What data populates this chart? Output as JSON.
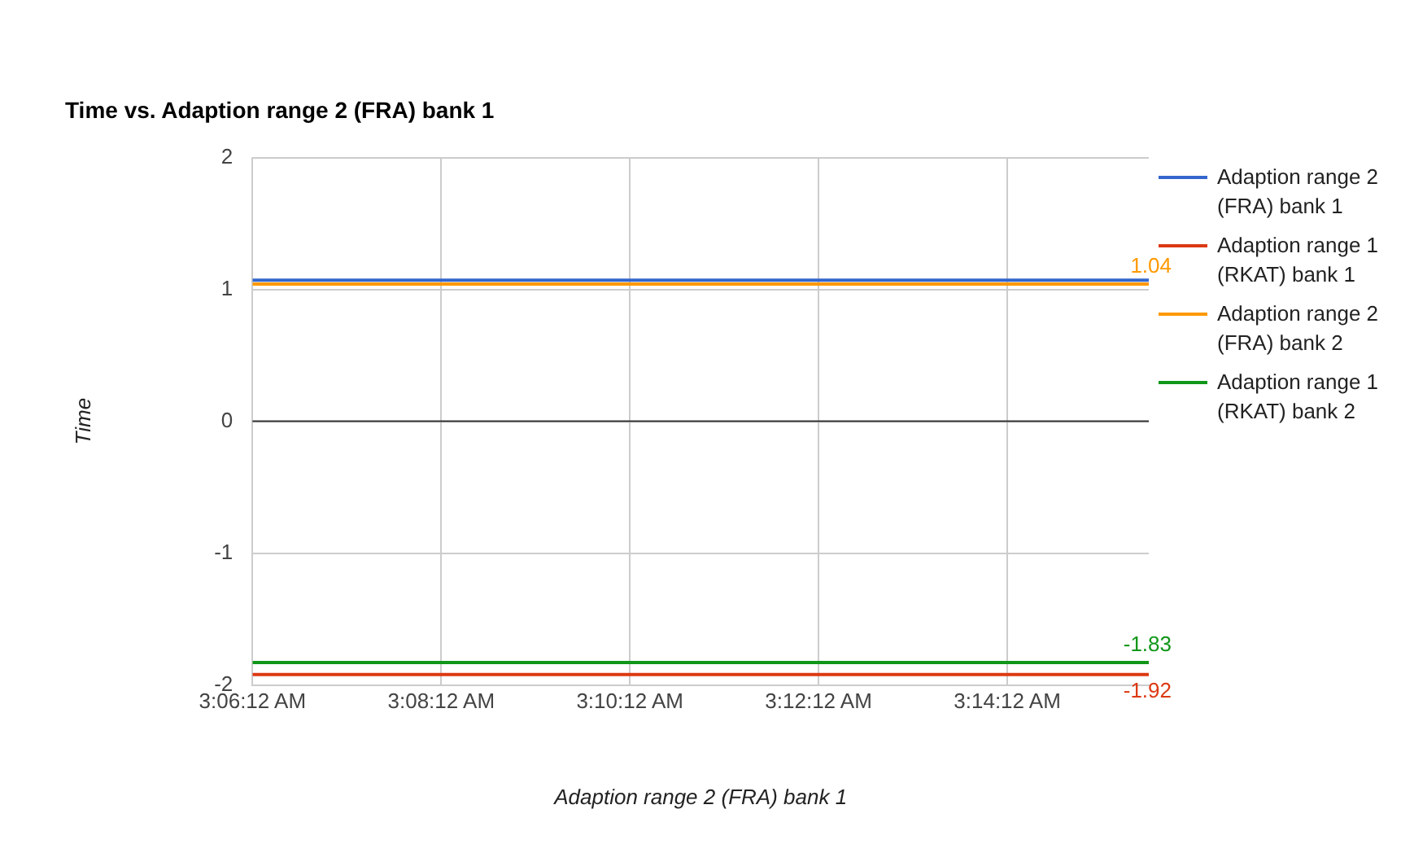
{
  "chart_data": {
    "type": "line",
    "title": "Time vs. Adaption range 2 (FRA) bank 1",
    "xlabel": "Adaption range 2 (FRA) bank 1",
    "ylabel": "Time",
    "x": [
      3.10333,
      3.26167
    ],
    "xlim": [
      3.10333,
      3.26167
    ],
    "xticks": [
      {
        "value": 3.10333,
        "label": "3:06:12 AM"
      },
      {
        "value": 3.13667,
        "label": "3:08:12 AM"
      },
      {
        "value": 3.17,
        "label": "3:10:12 AM"
      },
      {
        "value": 3.20333,
        "label": "3:12:12 AM"
      },
      {
        "value": 3.23667,
        "label": "3:14:12 AM"
      }
    ],
    "ylim": [
      -2,
      2
    ],
    "yticks": [
      -2,
      -1,
      0,
      1,
      2
    ],
    "series": [
      {
        "name": "Adaption range 2 (FRA) bank 1",
        "color": "#3366cc",
        "values": [
          1.07,
          1.07
        ],
        "value_labels": [
          null,
          null
        ]
      },
      {
        "name": "Adaption range 1 (RKAT) bank 1",
        "color": "#dc3912",
        "values": [
          -1.92,
          -1.92
        ],
        "value_labels": [
          null,
          "-1.92"
        ]
      },
      {
        "name": "Adaption range 2 (FRA) bank 2",
        "color": "#ff9900",
        "values": [
          1.04,
          1.04
        ],
        "value_labels": [
          null,
          "1.04"
        ]
      },
      {
        "name": "Adaption range 1 (RKAT) bank 2",
        "color": "#109618",
        "values": [
          -1.83,
          -1.83
        ],
        "value_labels": [
          null,
          "-1.83"
        ]
      }
    ],
    "ref_lines": [
      {
        "axis": "y",
        "value": 0,
        "color": "#333333"
      }
    ],
    "grid": true,
    "legend": "right",
    "marker": "none",
    "line_style": "solid"
  }
}
